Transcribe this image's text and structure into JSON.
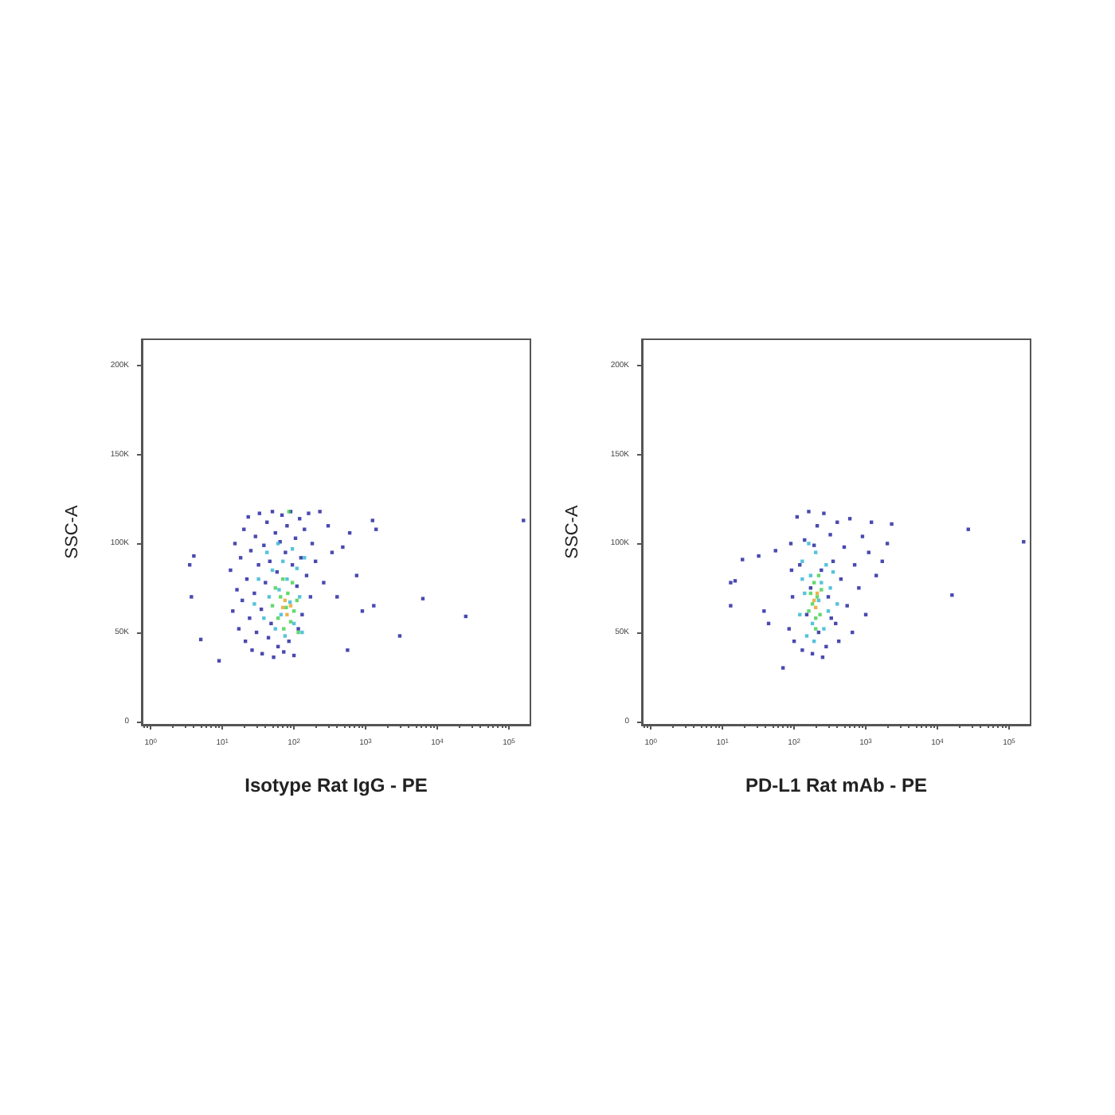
{
  "chart_data": [
    {
      "type": "scatter",
      "xlabel": "Isotype Rat IgG - PE",
      "ylabel": "SSC-A",
      "log": "x",
      "grid": false,
      "marker": "square",
      "xlim": [
        0.75,
        200000
      ],
      "xticks": [
        {
          "value": 1,
          "label": "10$^{0}$"
        },
        {
          "value": 10,
          "label": "10$^{1}$"
        },
        {
          "value": 100,
          "label": "10$^{2}$"
        },
        {
          "value": 1000,
          "label": "10$^{3}$"
        },
        {
          "value": 10000,
          "label": "10$^{4}$"
        },
        {
          "value": 100000,
          "label": "10$^{5}$"
        }
      ],
      "ylim": [
        -2000,
        215000
      ],
      "yticks": [
        0,
        {
          "value": 50000,
          "label": "50K"
        },
        {
          "value": 100000,
          "label": "100K"
        },
        {
          "value": 150000,
          "label": "150K"
        },
        {
          "value": 200000,
          "label": "200K"
        }
      ],
      "series": [
        {
          "color": "#1c1c9c",
          "x": [
            13,
            14,
            15,
            16,
            17,
            18,
            19,
            20,
            21,
            22,
            23,
            24,
            25,
            26,
            28,
            29,
            30,
            32,
            33,
            35,
            36,
            38,
            40,
            42,
            44,
            46,
            48,
            50,
            52,
            55,
            58,
            60,
            64,
            68,
            72,
            76,
            80,
            85,
            90,
            95,
            100,
            105,
            110,
            115,
            120,
            125,
            130,
            140,
            150,
            160,
            170,
            180,
            200,
            230,
            260,
            300,
            340,
            400,
            480,
            560,
            600,
            750,
            900,
            1250,
            1400,
            1300,
            3000,
            6300,
            25000,
            160000,
            3.5,
            4,
            5,
            9,
            3.7
          ],
          "values": [
            85000,
            62000,
            100000,
            74000,
            52000,
            92000,
            68000,
            108000,
            45000,
            80000,
            115000,
            58000,
            96000,
            40000,
            72000,
            104000,
            50000,
            88000,
            117000,
            63000,
            38000,
            99000,
            78000,
            112000,
            47000,
            90000,
            55000,
            118000,
            36000,
            106000,
            84000,
            42000,
            101000,
            116000,
            39000,
            95000,
            110000,
            45000,
            118000,
            88000,
            37000,
            103000,
            76000,
            52000,
            114000,
            92000,
            60000,
            108000,
            82000,
            117000,
            70000,
            100000,
            90000,
            118000,
            78000,
            110000,
            95000,
            70000,
            98000,
            40000,
            106000,
            82000,
            62000,
            113000,
            108000,
            65000,
            48000,
            69000,
            59000,
            113000,
            88000,
            93000,
            46000,
            34000,
            70000
          ]
        },
        {
          "color": "#2cb4d4",
          "x": [
            28,
            32,
            38,
            42,
            45,
            50,
            55,
            60,
            62,
            66,
            70,
            75,
            80,
            88,
            95,
            100,
            110,
            120,
            130,
            140
          ],
          "values": [
            66000,
            80000,
            58000,
            95000,
            70000,
            85000,
            52000,
            100000,
            74000,
            60000,
            90000,
            48000,
            80000,
            67000,
            97000,
            55000,
            86000,
            70000,
            50000,
            92000
          ]
        },
        {
          "color": "#3cd04c",
          "x": [
            50,
            55,
            60,
            65,
            70,
            72,
            78,
            82,
            90,
            95,
            100,
            110,
            115,
            85
          ],
          "values": [
            65000,
            75000,
            58000,
            70000,
            80000,
            52000,
            64000,
            72000,
            56000,
            78000,
            62000,
            68000,
            50000,
            118000
          ]
        },
        {
          "color": "#e8a020",
          "x": [
            70,
            80,
            75,
            90
          ],
          "values": [
            64000,
            60000,
            68000,
            65000
          ]
        }
      ]
    },
    {
      "type": "scatter",
      "xlabel": "PD-L1 Rat mAb - PE",
      "ylabel": "SSC-A",
      "log": "x",
      "grid": false,
      "marker": "square",
      "xlim": [
        0.75,
        200000
      ],
      "xticks": [
        {
          "value": 1,
          "label": "10$^{0}$"
        },
        {
          "value": 10,
          "label": "10$^{1}$"
        },
        {
          "value": 100,
          "label": "10$^{2}$"
        },
        {
          "value": 1000,
          "label": "10$^{3}$"
        },
        {
          "value": 10000,
          "label": "10$^{4}$"
        },
        {
          "value": 100000,
          "label": "10$^{5}$"
        }
      ],
      "ylim": [
        -2000,
        215000
      ],
      "yticks": [
        0,
        {
          "value": 50000,
          "label": "50K"
        },
        {
          "value": 100000,
          "label": "100K"
        },
        {
          "value": 150000,
          "label": "150K"
        },
        {
          "value": 200000,
          "label": "200K"
        }
      ],
      "series": [
        {
          "color": "#1c1c9c",
          "x": [
            100,
            110,
            120,
            130,
            140,
            150,
            160,
            170,
            180,
            190,
            210,
            220,
            240,
            260,
            280,
            300,
            320,
            350,
            380,
            400,
            450,
            500,
            550,
            600,
            700,
            800,
            900,
            1000,
            1100,
            1200,
            1400,
            1700,
            2000,
            2300,
            95,
            90,
            85,
            92,
            13,
            15,
            13,
            19,
            32,
            38,
            44,
            55,
            70,
            27000,
            16000,
            160000,
            250,
            330,
            420,
            650
          ],
          "values": [
            45000,
            115000,
            88000,
            40000,
            102000,
            60000,
            118000,
            75000,
            38000,
            99000,
            110000,
            50000,
            85000,
            117000,
            42000,
            70000,
            105000,
            90000,
            55000,
            112000,
            80000,
            98000,
            65000,
            114000,
            88000,
            75000,
            104000,
            60000,
            95000,
            112000,
            82000,
            90000,
            100000,
            111000,
            70000,
            100000,
            52000,
            85000,
            78000,
            79000,
            65000,
            91000,
            93000,
            62000,
            55000,
            96000,
            30000,
            108000,
            71000,
            101000,
            36000,
            58000,
            45000,
            50000
          ]
        },
        {
          "color": "#2cb4d4",
          "x": [
            120,
            130,
            140,
            150,
            160,
            170,
            180,
            200,
            220,
            240,
            260,
            280,
            300,
            320,
            350,
            400,
            130,
            190
          ],
          "values": [
            60000,
            90000,
            72000,
            48000,
            100000,
            82000,
            55000,
            95000,
            68000,
            78000,
            52000,
            88000,
            62000,
            75000,
            84000,
            66000,
            80000,
            45000
          ]
        },
        {
          "color": "#3cd04c",
          "x": [
            160,
            170,
            180,
            190,
            200,
            210,
            220,
            230,
            240,
            200
          ],
          "values": [
            62000,
            72000,
            66000,
            78000,
            58000,
            70000,
            82000,
            60000,
            74000,
            52000
          ]
        },
        {
          "color": "#e8a020",
          "x": [
            200,
            210,
            190
          ],
          "values": [
            64000,
            72000,
            68000
          ]
        }
      ]
    }
  ]
}
